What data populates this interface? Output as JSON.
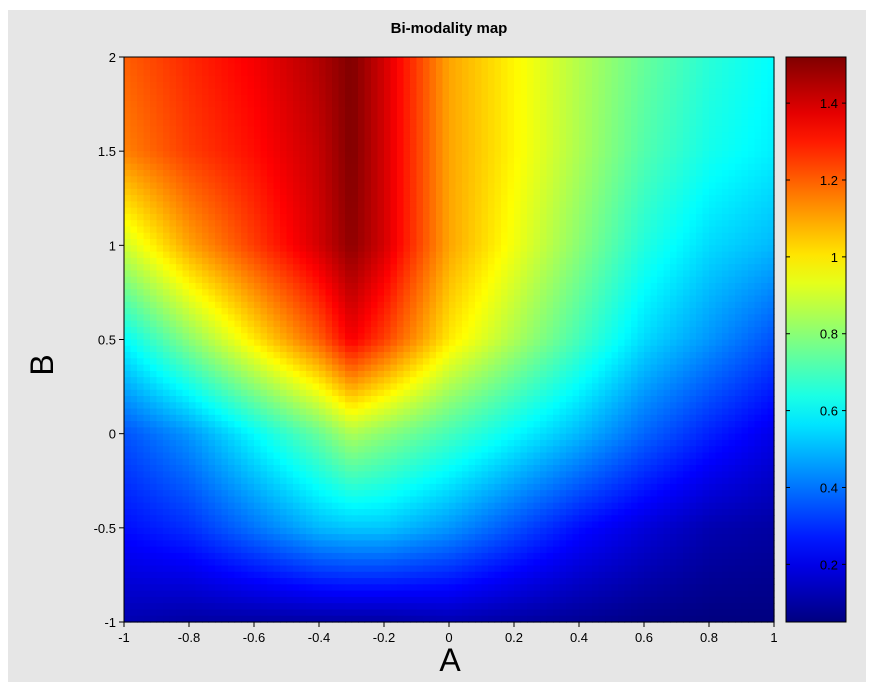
{
  "chart_data": {
    "type": "heatmap",
    "title": "Bi-modality map",
    "xlabel": "A",
    "ylabel": "B",
    "xlim": [
      -1,
      1
    ],
    "ylim": [
      -1,
      2
    ],
    "x_ticks": [
      "-1",
      "-0.8",
      "-0.6",
      "-0.4",
      "-0.2",
      "0",
      "0.2",
      "0.4",
      "0.6",
      "0.8",
      "1"
    ],
    "y_ticks": [
      "-1",
      "-0.5",
      "0",
      "0.5",
      "1",
      "1.5",
      "2"
    ],
    "colorbar": {
      "colormap": "jet",
      "clim": [
        0.05,
        1.52
      ],
      "ticks": [
        "0.2",
        "0.4",
        "0.6",
        "0.8",
        "1",
        "1.2",
        "1.4"
      ]
    },
    "x": [
      -1.0,
      -0.8,
      -0.6,
      -0.4,
      -0.3,
      -0.2,
      0.0,
      0.2,
      0.4,
      0.6,
      0.8,
      1.0
    ],
    "y": [
      -1.0,
      -0.5,
      0.0,
      0.5,
      1.0,
      1.5,
      2.0
    ],
    "z": [
      [
        0.12,
        0.1,
        0.1,
        0.1,
        0.1,
        0.1,
        0.12,
        0.1,
        0.08,
        0.06,
        0.05,
        0.05
      ],
      [
        0.25,
        0.3,
        0.4,
        0.5,
        0.52,
        0.52,
        0.45,
        0.35,
        0.25,
        0.18,
        0.12,
        0.1
      ],
      [
        0.35,
        0.45,
        0.6,
        0.75,
        0.85,
        0.8,
        0.7,
        0.6,
        0.5,
        0.38,
        0.28,
        0.2
      ],
      [
        0.6,
        0.8,
        1.0,
        1.2,
        1.35,
        1.25,
        1.0,
        0.85,
        0.7,
        0.55,
        0.45,
        0.35
      ],
      [
        0.9,
        1.1,
        1.25,
        1.4,
        1.5,
        1.4,
        1.1,
        0.95,
        0.8,
        0.65,
        0.55,
        0.5
      ],
      [
        1.15,
        1.25,
        1.32,
        1.42,
        1.52,
        1.4,
        1.1,
        0.98,
        0.85,
        0.72,
        0.63,
        0.58
      ],
      [
        1.2,
        1.28,
        1.35,
        1.45,
        1.52,
        1.4,
        1.1,
        0.98,
        0.86,
        0.75,
        0.66,
        0.6
      ]
    ]
  }
}
